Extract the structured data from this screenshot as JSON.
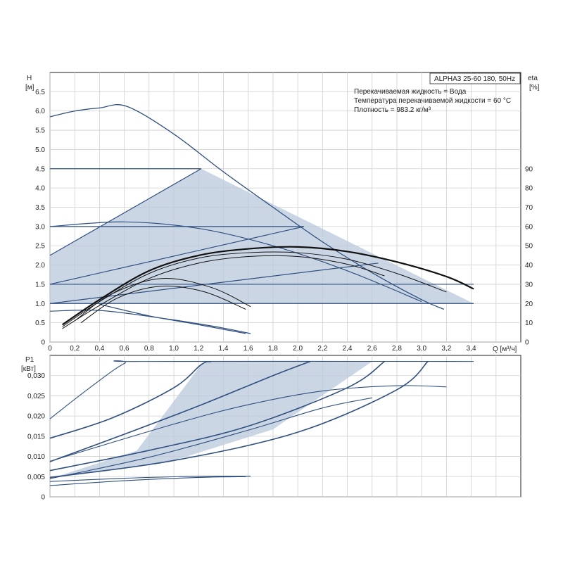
{
  "chart_data": [
    {
      "type": "line",
      "panel": "head-and-efficiency",
      "model_label": "ALPHA3 25-60 180, 50Hz",
      "info": [
        "Перекачиваемая жидкость = Вода",
        "Температура перекачиваемой жидкости = 60 °C",
        "Плотность = 983.2 кг/м³"
      ],
      "ylabel_left": "H",
      "yunit_left": "[м]",
      "ylabel_right": "eta",
      "yunit_right": "[%]",
      "xlabel": "Q [м³/ч]",
      "xlim": [
        0,
        3.8
      ],
      "ylim": [
        0,
        7.0
      ],
      "ylim_right": [
        0,
        140
      ],
      "grid": true,
      "x_ticks": [
        "0",
        "0,2",
        "0,4",
        "0,6",
        "0,8",
        "1,0",
        "1,2",
        "1,4",
        "1,6",
        "1,8",
        "2,0",
        "2,2",
        "2,4",
        "2,6",
        "2,8",
        "3,0",
        "3,2",
        "3,4"
      ],
      "y_ticks": [
        "0",
        "0.5",
        "1.0",
        "1.5",
        "2.0",
        "2.5",
        "3.0",
        "3.5",
        "4.0",
        "4.5",
        "5.0",
        "5.5",
        "6.0",
        "6.5"
      ],
      "y_ticks_right": [
        "0",
        "10",
        "20",
        "30",
        "40",
        "50",
        "60",
        "70",
        "80",
        "90"
      ],
      "shaded_region": [
        [
          0,
          2.25
        ],
        [
          1.22,
          4.5
        ],
        [
          3.42,
          1.0
        ],
        [
          0,
          1.0
        ]
      ],
      "series": [
        {
          "role": "max-curve",
          "x": [
            0,
            0.2,
            0.4,
            0.62,
            1.0,
            1.4,
            1.8,
            2.2,
            2.6,
            3.0,
            3.18
          ],
          "y": [
            5.85,
            6.0,
            6.08,
            6.12,
            5.4,
            4.42,
            3.5,
            2.6,
            1.8,
            1.1,
            0.85
          ]
        },
        {
          "role": "constant-pressure",
          "x": [
            0,
            1.22
          ],
          "y": [
            4.5,
            4.5
          ]
        },
        {
          "role": "constant-pressure",
          "x": [
            0,
            2.05
          ],
          "y": [
            3.0,
            3.0
          ]
        },
        {
          "role": "constant-pressure",
          "x": [
            0,
            3.42
          ],
          "y": [
            1.5,
            1.5
          ]
        },
        {
          "role": "proportional-pressure",
          "x": [
            0,
            1.22
          ],
          "y": [
            2.25,
            4.5
          ]
        },
        {
          "role": "proportional-pressure",
          "x": [
            0,
            2.05
          ],
          "y": [
            1.5,
            3.0
          ]
        },
        {
          "role": "proportional-pressure",
          "x": [
            0,
            2.65
          ],
          "y": [
            1.0,
            2.05
          ]
        },
        {
          "role": "proportional-pressure",
          "x": [
            0,
            3.42
          ],
          "y": [
            1.0,
            1.0
          ]
        },
        {
          "role": "speed-curve",
          "x": [
            0,
            0.6,
            1.2,
            1.8,
            2.4,
            3.0
          ],
          "y": [
            3.0,
            3.12,
            2.95,
            2.5,
            1.85,
            1.05
          ]
        },
        {
          "role": "speed-curve",
          "x": [
            0,
            0.4,
            0.9,
            1.3,
            1.62
          ],
          "y": [
            0.8,
            0.82,
            0.62,
            0.42,
            0.22
          ]
        },
        {
          "role": "speed-curve",
          "x": [
            0.4,
            0.8,
            1.2,
            1.58
          ],
          "y": [
            0.98,
            0.68,
            0.45,
            0.22
          ]
        },
        {
          "role": "efficiency",
          "x": [
            0.1,
            0.4,
            0.8,
            1.2,
            1.6,
            2.0,
            2.4,
            2.8,
            3.2,
            3.42
          ],
          "y": [
            0.45,
            1.1,
            1.85,
            2.25,
            2.42,
            2.47,
            2.35,
            2.08,
            1.7,
            1.38
          ]
        },
        {
          "role": "efficiency",
          "x": [
            0.1,
            0.4,
            0.8,
            1.2,
            1.6,
            2.0,
            2.4,
            2.8,
            3.2
          ],
          "y": [
            0.4,
            1.05,
            1.78,
            2.18,
            2.32,
            2.32,
            2.15,
            1.78,
            1.3
          ]
        },
        {
          "role": "efficiency",
          "x": [
            0.1,
            0.4,
            0.8,
            1.2,
            1.6,
            2.0,
            2.4,
            2.7
          ],
          "y": [
            0.35,
            0.95,
            1.65,
            2.05,
            2.22,
            2.22,
            2.02,
            1.72
          ]
        },
        {
          "role": "efficiency",
          "x": [
            0.2,
            0.5,
            0.9,
            1.3,
            1.62
          ],
          "y": [
            0.55,
            1.25,
            1.65,
            1.42,
            0.92
          ]
        },
        {
          "role": "efficiency",
          "x": [
            0.25,
            0.55,
            0.9,
            1.25,
            1.58
          ],
          "y": [
            0.5,
            1.15,
            1.45,
            1.3,
            0.85
          ]
        }
      ]
    },
    {
      "type": "line",
      "panel": "power",
      "ylabel": "P1",
      "yunit": "[кВт]",
      "xlim": [
        0,
        3.8
      ],
      "ylim": [
        0,
        0.035
      ],
      "grid": true,
      "y_ticks": [
        "0",
        "0,005",
        "0,010",
        "0,015",
        "0,020",
        "0,025",
        "0,030"
      ],
      "shaded_region": [
        [
          0,
          0.0045
        ],
        [
          0.7,
          0.0114
        ],
        [
          1.22,
          0.0327
        ],
        [
          1.3,
          0.0335
        ],
        [
          2.7,
          0.0335
        ],
        [
          3.42,
          0.0335
        ],
        [
          2.6,
          0.0335
        ],
        [
          1.8,
          0.0167
        ],
        [
          1.0,
          0.009
        ],
        [
          0,
          0.0048
        ]
      ],
      "series": [
        {
          "role": "max-curve",
          "x": [
            0,
            0.3,
            0.6,
            0.75,
            3.42
          ],
          "y": [
            0.0193,
            0.0265,
            0.033,
            0.0335,
            0.0335
          ]
        },
        {
          "role": "power",
          "x": [
            0,
            0.5,
            1.0,
            1.22,
            1.3
          ],
          "y": [
            0.0145,
            0.0195,
            0.027,
            0.0327,
            0.0335
          ]
        },
        {
          "role": "power",
          "x": [
            0,
            0.6,
            1.2,
            1.8,
            2.1
          ],
          "y": [
            0.0087,
            0.0155,
            0.0225,
            0.03,
            0.0335
          ]
        },
        {
          "role": "power",
          "x": [
            0,
            0.8,
            1.6,
            2.4,
            2.7
          ],
          "y": [
            0.0065,
            0.0115,
            0.0175,
            0.027,
            0.0335
          ]
        },
        {
          "role": "power",
          "x": [
            0,
            1.0,
            2.0,
            2.8,
            3.05
          ],
          "y": [
            0.0048,
            0.009,
            0.016,
            0.0265,
            0.0335
          ]
        },
        {
          "role": "power",
          "x": [
            0,
            1.0,
            1.6,
            2.2,
            2.8,
            3.2
          ],
          "y": [
            0.0088,
            0.018,
            0.0228,
            0.0262,
            0.0275,
            0.0272
          ]
        },
        {
          "role": "power",
          "x": [
            0,
            0.8,
            1.6,
            2.2,
            2.6
          ],
          "y": [
            0.0045,
            0.0098,
            0.0165,
            0.022,
            0.0245
          ]
        },
        {
          "role": "power",
          "x": [
            0,
            0.6,
            1.2,
            1.62
          ],
          "y": [
            0.0038,
            0.0046,
            0.0051,
            0.0051
          ]
        },
        {
          "role": "power",
          "x": [
            0,
            0.6,
            1.2,
            1.58
          ],
          "y": [
            0.0028,
            0.004,
            0.0048,
            0.005
          ]
        }
      ]
    }
  ]
}
